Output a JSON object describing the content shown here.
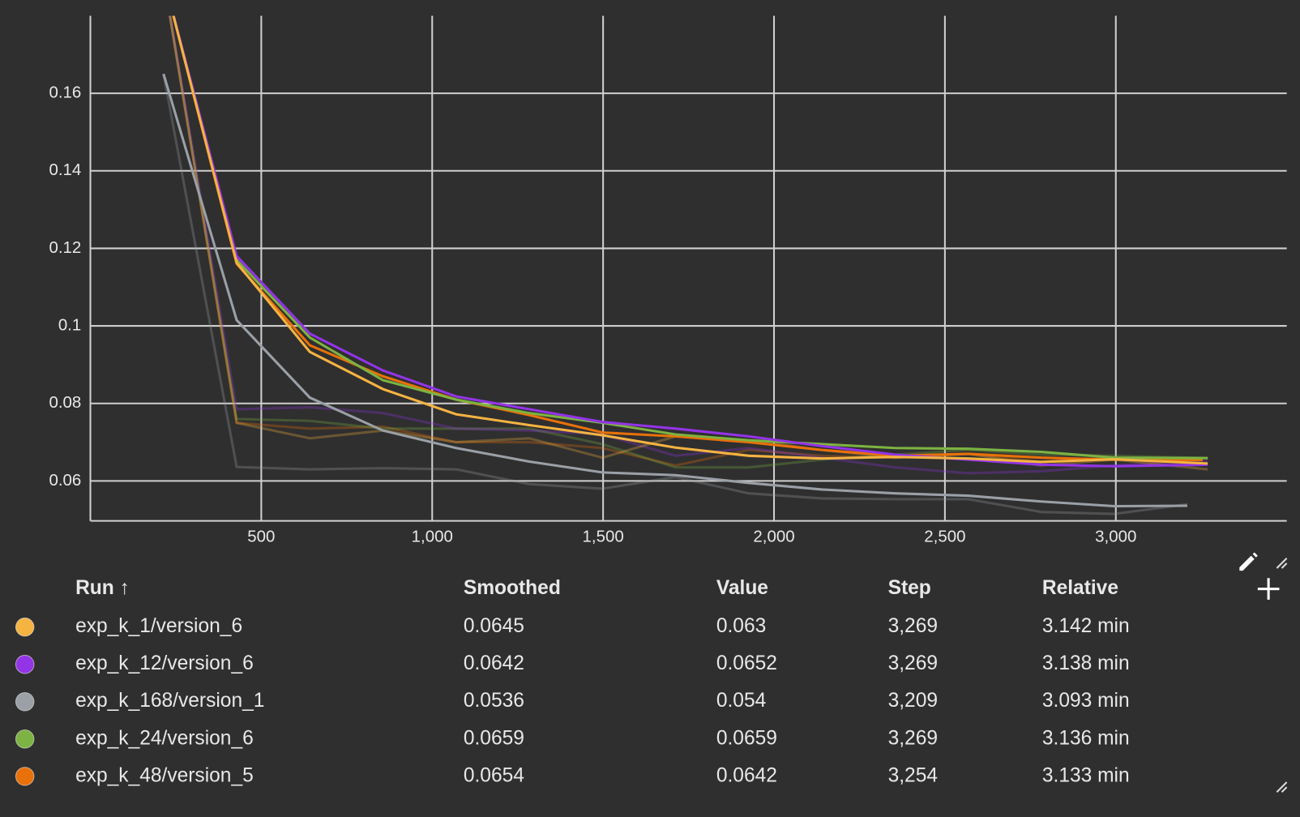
{
  "chart_data": {
    "type": "line",
    "xlim": [
      0,
      3500
    ],
    "ylim": [
      0.0497,
      0.18
    ],
    "xticks": [
      500,
      {
        "value": 1000,
        "label": "1,000"
      },
      {
        "value": 1500,
        "label": "1,500"
      },
      {
        "value": 2000,
        "label": "2,000"
      },
      {
        "value": 2500,
        "label": "2,500"
      },
      {
        "value": 3000,
        "label": "3,000"
      }
    ],
    "yticks": [
      0.06,
      0.08,
      0.1,
      0.12,
      0.14,
      0.16
    ],
    "grid": true,
    "series": [
      {
        "name": "exp_k_1/version_6",
        "color": "#f5b342",
        "x": [
          214,
          428,
          642,
          856,
          1070,
          1284,
          1498,
          1712,
          1926,
          2140,
          2354,
          2568,
          2782,
          2996,
          3269
        ],
        "values": [
          0.19,
          0.1163,
          0.0933,
          0.0837,
          0.0772,
          0.0744,
          0.0718,
          0.0686,
          0.0665,
          0.0658,
          0.0662,
          0.0658,
          0.0649,
          0.0656,
          0.0645
        ],
        "raw": [
          0.19,
          0.075,
          0.071,
          0.073,
          0.07,
          0.071,
          0.066,
          0.0715,
          0.0705,
          0.068,
          0.066,
          0.067,
          0.064,
          0.0655,
          0.063
        ]
      },
      {
        "name": "exp_k_12/version_6",
        "color": "#9334e6",
        "x": [
          214,
          428,
          642,
          856,
          1070,
          1284,
          1498,
          1712,
          1926,
          2140,
          2354,
          2568,
          2782,
          2996,
          3269
        ],
        "values": [
          0.19,
          0.118,
          0.098,
          0.0885,
          0.0818,
          0.0785,
          0.0752,
          0.0735,
          0.0715,
          0.069,
          0.0668,
          0.0655,
          0.0642,
          0.0638,
          0.0642
        ],
        "raw": [
          0.19,
          0.0785,
          0.079,
          0.0775,
          0.0735,
          0.073,
          0.072,
          0.0665,
          0.0685,
          0.066,
          0.0635,
          0.062,
          0.0625,
          0.064,
          0.0652
        ]
      },
      {
        "name": "exp_k_168/version_1",
        "color": "#9aa0a6",
        "x": [
          214,
          428,
          642,
          856,
          1070,
          1284,
          1498,
          1712,
          1926,
          2140,
          2354,
          2568,
          2782,
          2996,
          3209
        ],
        "values": [
          0.165,
          0.1015,
          0.0815,
          0.073,
          0.0685,
          0.065,
          0.0622,
          0.0615,
          0.0595,
          0.0578,
          0.0568,
          0.0562,
          0.0547,
          0.0535,
          0.0536
        ],
        "raw": [
          0.165,
          0.0636,
          0.063,
          0.0633,
          0.063,
          0.0592,
          0.058,
          0.061,
          0.0568,
          0.0555,
          0.0553,
          0.0553,
          0.052,
          0.0515,
          0.054
        ]
      },
      {
        "name": "exp_k_24/version_6",
        "color": "#7cb342",
        "x": [
          214,
          428,
          642,
          856,
          1070,
          1284,
          1498,
          1712,
          1926,
          2140,
          2354,
          2568,
          2782,
          2996,
          3269
        ],
        "values": [
          0.19,
          0.117,
          0.097,
          0.086,
          0.081,
          0.0775,
          0.075,
          0.072,
          0.0705,
          0.0695,
          0.0685,
          0.0683,
          0.0675,
          0.066,
          0.0659
        ],
        "raw": [
          0.19,
          0.076,
          0.0755,
          0.0735,
          0.0735,
          0.0735,
          0.0695,
          0.0635,
          0.0635,
          0.0655,
          0.0668,
          0.068,
          0.0668,
          0.0665,
          0.0659
        ]
      },
      {
        "name": "exp_k_48/version_5",
        "color": "#e8710a",
        "x": [
          214,
          428,
          642,
          856,
          1070,
          1284,
          1498,
          1712,
          1926,
          2140,
          2354,
          2568,
          2782,
          2996,
          3254
        ],
        "values": [
          0.19,
          0.116,
          0.095,
          0.087,
          0.081,
          0.077,
          0.0725,
          0.0715,
          0.07,
          0.068,
          0.0665,
          0.067,
          0.066,
          0.0655,
          0.0654
        ],
        "raw": [
          0.19,
          0.075,
          0.0735,
          0.074,
          0.07,
          0.07,
          0.0685,
          0.064,
          0.068,
          0.0665,
          0.066,
          0.067,
          0.065,
          0.066,
          0.0642
        ]
      }
    ]
  },
  "table": {
    "columns": [
      "Run ↑",
      "Smoothed",
      "Value",
      "Step",
      "Relative"
    ],
    "rows": [
      [
        "0.0645",
        "0.063",
        "3,269",
        "3.142 min"
      ],
      [
        "0.0642",
        "0.0652",
        "3,269",
        "3.138 min"
      ],
      [
        "0.0536",
        "0.054",
        "3,209",
        "3.093 min"
      ],
      [
        "0.0659",
        "0.0659",
        "3,269",
        "3.136 min"
      ],
      [
        "0.0654",
        "0.0642",
        "3,254",
        "3.133 min"
      ]
    ]
  }
}
